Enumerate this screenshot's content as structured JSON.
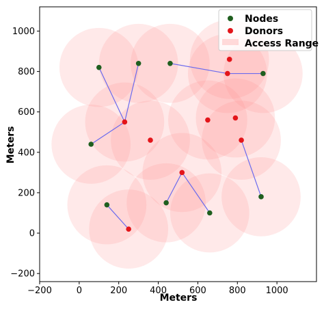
{
  "chart_data": {
    "type": "scatter",
    "title": "",
    "xlabel": "Meters",
    "ylabel": "Meters",
    "xlim": [
      -200,
      1200
    ],
    "ylim": [
      -240,
      1120
    ],
    "xticks": [
      -200,
      0,
      200,
      400,
      600,
      800,
      1000
    ],
    "yticks": [
      -200,
      0,
      200,
      400,
      600,
      800,
      1000
    ],
    "xtick_labels": [
      "−200",
      "0",
      "200",
      "400",
      "600",
      "800",
      "1000"
    ],
    "ytick_labels": [
      "−200",
      "0",
      "200",
      "400",
      "600",
      "800",
      "1000"
    ],
    "grid": false,
    "legend_position": "top-right",
    "access_range_radius": 200,
    "series": [
      {
        "name": "Nodes",
        "color": "#1f5f1f",
        "points": [
          {
            "x": 100,
            "y": 820
          },
          {
            "x": 300,
            "y": 840
          },
          {
            "x": 460,
            "y": 840
          },
          {
            "x": 930,
            "y": 790
          },
          {
            "x": 60,
            "y": 440
          },
          {
            "x": 140,
            "y": 140
          },
          {
            "x": 440,
            "y": 150
          },
          {
            "x": 660,
            "y": 100
          },
          {
            "x": 920,
            "y": 180
          }
        ]
      },
      {
        "name": "Donors",
        "color": "#e3151a",
        "points": [
          {
            "x": 760,
            "y": 860
          },
          {
            "x": 750,
            "y": 790
          },
          {
            "x": 230,
            "y": 550
          },
          {
            "x": 360,
            "y": 460
          },
          {
            "x": 650,
            "y": 560
          },
          {
            "x": 790,
            "y": 570
          },
          {
            "x": 820,
            "y": 460
          },
          {
            "x": 520,
            "y": 300
          },
          {
            "x": 250,
            "y": 20
          }
        ]
      },
      {
        "name": "Access Range",
        "color": "#ff8f8f"
      }
    ],
    "range_centers": [
      {
        "x": 100,
        "y": 820
      },
      {
        "x": 300,
        "y": 840
      },
      {
        "x": 460,
        "y": 840
      },
      {
        "x": 760,
        "y": 860
      },
      {
        "x": 750,
        "y": 790
      },
      {
        "x": 930,
        "y": 790
      },
      {
        "x": 230,
        "y": 550
      },
      {
        "x": 60,
        "y": 440
      },
      {
        "x": 360,
        "y": 460
      },
      {
        "x": 650,
        "y": 560
      },
      {
        "x": 790,
        "y": 570
      },
      {
        "x": 820,
        "y": 460
      },
      {
        "x": 520,
        "y": 300
      },
      {
        "x": 140,
        "y": 140
      },
      {
        "x": 440,
        "y": 150
      },
      {
        "x": 660,
        "y": 100
      },
      {
        "x": 920,
        "y": 180
      },
      {
        "x": 250,
        "y": 20
      }
    ],
    "links": [
      {
        "from": [
          100,
          820
        ],
        "to": [
          230,
          550
        ]
      },
      {
        "from": [
          300,
          840
        ],
        "to": [
          230,
          550
        ]
      },
      {
        "from": [
          60,
          440
        ],
        "to": [
          230,
          550
        ]
      },
      {
        "from": [
          460,
          840
        ],
        "to": [
          750,
          790
        ]
      },
      {
        "from": [
          930,
          790
        ],
        "to": [
          750,
          790
        ]
      },
      {
        "from": [
          920,
          180
        ],
        "to": [
          820,
          460
        ]
      },
      {
        "from": [
          440,
          150
        ],
        "to": [
          520,
          300
        ]
      },
      {
        "from": [
          660,
          100
        ],
        "to": [
          520,
          300
        ]
      },
      {
        "from": [
          140,
          140
        ],
        "to": [
          250,
          20
        ]
      }
    ],
    "link_color": "#6a6aee"
  }
}
